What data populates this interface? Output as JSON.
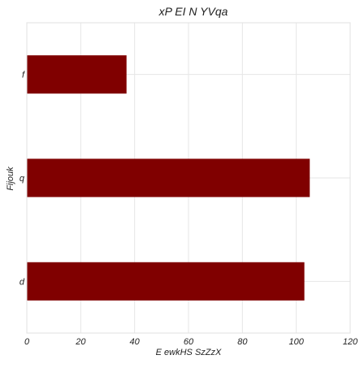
{
  "chart_data": {
    "type": "bar",
    "orientation": "horizontal",
    "title": "xP EI  N YVqa",
    "xlabel": "E ewkHS SzZzX",
    "ylabel": "Fijouk",
    "categories": [
      "f",
      "q",
      "d"
    ],
    "values": [
      37,
      105,
      103
    ],
    "xlim": [
      0,
      120
    ],
    "xticks": [
      0,
      20,
      40,
      60,
      80,
      100,
      120
    ],
    "grid": true,
    "bar_color": "#800000",
    "grid_color": "#e6e6e6"
  }
}
